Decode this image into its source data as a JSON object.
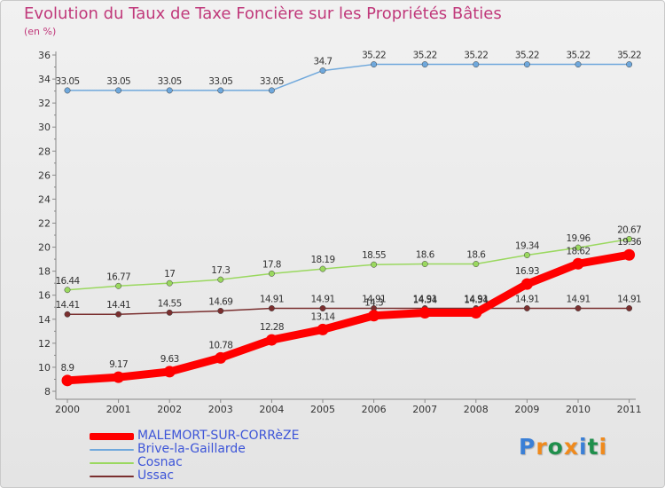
{
  "header": {
    "title": "Evolution du Taux de Taxe Foncière sur les Propriétés Bâties",
    "unit": "(en %)"
  },
  "logo": {
    "letters": [
      "P",
      "r",
      "o",
      "x",
      "i",
      "t",
      "i"
    ],
    "colors": [
      "#3a7fd6",
      "#f08a1c",
      "#1f8f4c",
      "#f08a1c",
      "#3a7fd6",
      "#1f8f4c",
      "#f08a1c"
    ]
  },
  "chart_data": {
    "type": "line",
    "title": "Evolution du Taux de Taxe Foncière sur les Propriétés Bâties",
    "ylabel": "(en %)",
    "xlabel": "",
    "categories": [
      "2000",
      "2001",
      "2002",
      "2003",
      "2004",
      "2005",
      "2006",
      "2007",
      "2008",
      "2009",
      "2010",
      "2011"
    ],
    "ylim": [
      8,
      36
    ],
    "yticks": [
      8,
      10,
      12,
      14,
      16,
      18,
      20,
      22,
      24,
      26,
      28,
      30,
      32,
      34,
      36
    ],
    "grid": false,
    "legend_position": "bottom-left",
    "series": [
      {
        "name": "MALEMORT-SUR-CORRèZE",
        "color": "#ff0000",
        "thick": true,
        "values": [
          8.9,
          9.17,
          9.63,
          10.78,
          12.28,
          13.14,
          14.3,
          14.54,
          14.54,
          16.93,
          18.62,
          19.36
        ],
        "labels": [
          "8.9",
          "9.17",
          "9.63",
          "10.78",
          "12.28",
          "13.14",
          "14.3",
          "14.54",
          "14.54",
          "16.93",
          "18.62",
          "19.36"
        ]
      },
      {
        "name": "Brive-la-Gaillarde",
        "color": "#6fa8dc",
        "thick": false,
        "values": [
          33.05,
          33.05,
          33.05,
          33.05,
          33.05,
          34.7,
          35.22,
          35.22,
          35.22,
          35.22,
          35.22,
          35.22
        ],
        "labels": [
          "33.05",
          "33.05",
          "33.05",
          "33.05",
          "33.05",
          "34.7",
          "35.22",
          "35.22",
          "35.22",
          "35.22",
          "35.22",
          "35.22"
        ]
      },
      {
        "name": "Cosnac",
        "color": "#9ad85f",
        "thick": false,
        "values": [
          16.44,
          16.77,
          17,
          17.3,
          17.8,
          18.19,
          18.55,
          18.6,
          18.6,
          19.34,
          19.96,
          20.67
        ],
        "labels": [
          "16.44",
          "16.77",
          "17",
          "17.3",
          "17.8",
          "18.19",
          "18.55",
          "18.6",
          "18.6",
          "19.34",
          "19.96",
          "20.67"
        ]
      },
      {
        "name": "Ussac",
        "color": "#7a2f2f",
        "thick": false,
        "values": [
          14.41,
          14.41,
          14.55,
          14.69,
          14.91,
          14.91,
          14.91,
          14.91,
          14.91,
          14.91,
          14.91,
          14.91
        ],
        "labels": [
          "14.41",
          "14.41",
          "14.55",
          "14.69",
          "14.91",
          "14.91",
          "14.91",
          "14.91",
          "14.91",
          "14.91",
          "14.91",
          "14.91"
        ]
      }
    ]
  }
}
